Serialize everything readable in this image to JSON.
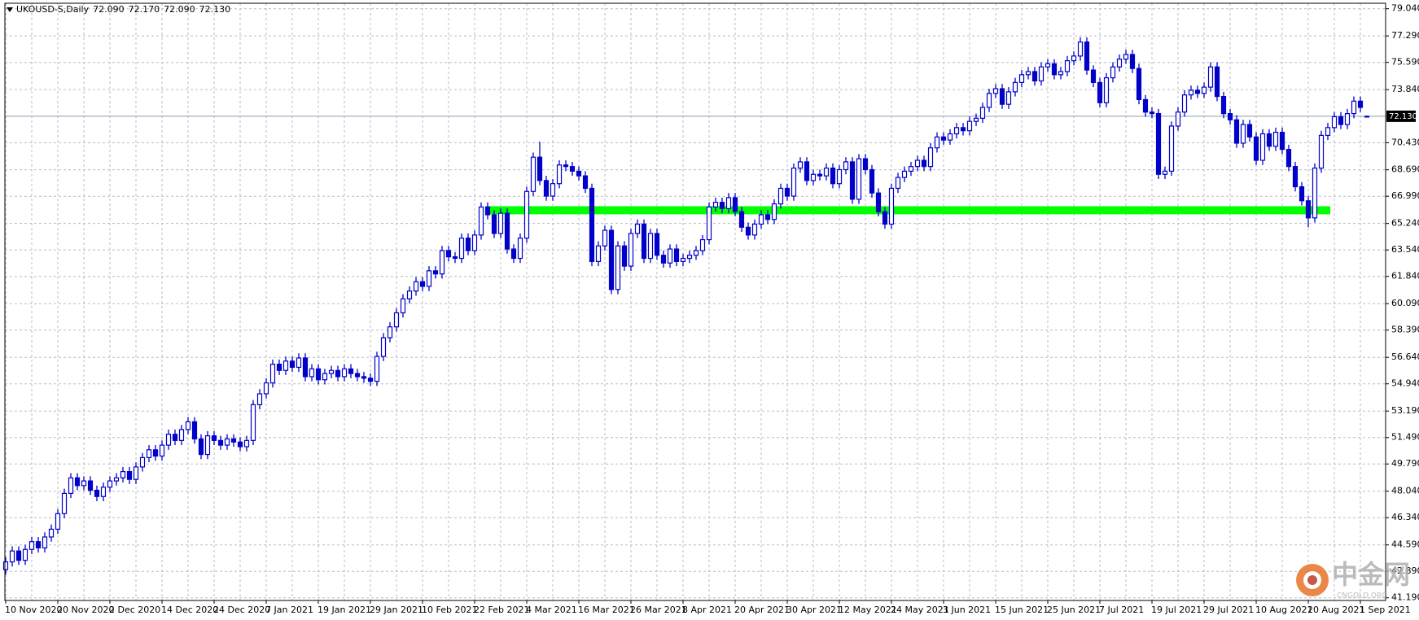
{
  "chart_data": {
    "type": "candlestick",
    "symbol": "UKOUSD-S,Daily",
    "header_values": [
      {
        "value": 72.09,
        "label": "72.090"
      },
      {
        "value": 72.17,
        "label": "72.170"
      },
      {
        "value": 72.09,
        "label": "72.090"
      },
      {
        "value": 72.13,
        "label": "72.130"
      }
    ],
    "up_color": "#0000c8",
    "down_color": "#0000c8",
    "grid": true,
    "ylim": [
      41.02,
      79.39
    ],
    "yticks": [
      {
        "value": 41.19,
        "label": "41.190"
      },
      {
        "value": 42.89,
        "label": "42.890"
      },
      {
        "value": 44.59,
        "label": "44.590"
      },
      {
        "value": 46.34,
        "label": "46.340"
      },
      {
        "value": 48.04,
        "label": "48.040"
      },
      {
        "value": 49.79,
        "label": "49.790"
      },
      {
        "value": 51.49,
        "label": "51.490"
      },
      {
        "value": 53.19,
        "label": "53.190"
      },
      {
        "value": 54.94,
        "label": "54.940"
      },
      {
        "value": 56.64,
        "label": "56.640"
      },
      {
        "value": 58.39,
        "label": "58.390"
      },
      {
        "value": 60.09,
        "label": "60.090"
      },
      {
        "value": 61.84,
        "label": "61.840"
      },
      {
        "value": 63.54,
        "label": "63.540"
      },
      {
        "value": 65.24,
        "label": "65.240"
      },
      {
        "value": 66.99,
        "label": "66.990"
      },
      {
        "value": 68.69,
        "label": "68.690"
      },
      {
        "value": 70.43,
        "label": "70.430"
      },
      {
        "value": 73.84,
        "label": "73.840"
      },
      {
        "value": 75.59,
        "label": "75.590"
      },
      {
        "value": 77.29,
        "label": "77.290"
      },
      {
        "value": 79.04,
        "label": "79.040"
      }
    ],
    "current_price": {
      "value": 72.13,
      "label": "72.130",
      "color": "#8a9ab0"
    },
    "support_band": {
      "ylim": [
        65.83,
        66.35
      ],
      "x_range": [
        74,
        203
      ],
      "color": "#00ff00"
    },
    "categories": [
      "10 Nov 2020",
      null,
      null,
      null,
      null,
      null,
      null,
      null,
      "20 Nov 2020",
      null,
      null,
      null,
      null,
      null,
      null,
      null,
      "2 Dec 2020",
      null,
      null,
      null,
      null,
      null,
      null,
      null,
      "14 Dec 2020",
      null,
      null,
      null,
      null,
      null,
      null,
      null,
      "24 Dec 2020",
      null,
      null,
      null,
      null,
      null,
      null,
      null,
      "7 Jan 2021",
      null,
      null,
      null,
      null,
      null,
      null,
      null,
      "19 Jan 2021",
      null,
      null,
      null,
      null,
      null,
      null,
      null,
      "29 Jan 2021",
      null,
      null,
      null,
      null,
      null,
      null,
      null,
      "10 Feb 2021",
      null,
      null,
      null,
      null,
      null,
      null,
      null,
      "22 Feb 2021",
      null,
      null,
      null,
      null,
      null,
      null,
      null,
      "4 Mar 2021",
      null,
      null,
      null,
      null,
      null,
      null,
      null,
      "16 Mar 2021",
      null,
      null,
      null,
      null,
      null,
      null,
      null,
      "26 Mar 2021",
      null,
      null,
      null,
      null,
      null,
      null,
      null,
      "8 Apr 2021",
      null,
      null,
      null,
      null,
      null,
      null,
      null,
      "20 Apr 2021",
      null,
      null,
      null,
      null,
      null,
      null,
      null,
      "30 Apr 2021",
      null,
      null,
      null,
      null,
      null,
      null,
      null,
      "12 May 2021",
      null,
      null,
      null,
      null,
      null,
      null,
      null,
      "24 May 2021",
      null,
      null,
      null,
      null,
      null,
      null,
      null,
      "3 Jun 2021",
      null,
      null,
      null,
      null,
      null,
      null,
      null,
      "15 Jun 2021",
      null,
      null,
      null,
      null,
      null,
      null,
      null,
      "25 Jun 2021",
      null,
      null,
      null,
      null,
      null,
      null,
      null,
      "7 Jul 2021",
      null,
      null,
      null,
      null,
      null,
      null,
      null,
      "19 Jul 2021",
      null,
      null,
      null,
      null,
      null,
      null,
      null,
      "29 Jul 2021",
      null,
      null,
      null,
      null,
      null,
      null,
      null,
      "10 Aug 2021",
      null,
      null,
      null,
      null,
      null,
      null,
      null,
      "20 Aug 2021",
      null,
      null,
      null,
      null,
      null,
      null,
      null,
      "1 Sep 2021",
      null
    ],
    "open": [
      43.0,
      43.5,
      44.2,
      43.6,
      44.3,
      44.8,
      44.4,
      45.1,
      45.6,
      46.6,
      47.9,
      48.9,
      48.4,
      48.7,
      48.1,
      47.7,
      48.3,
      48.7,
      48.9,
      49.3,
      48.8,
      49.6,
      50.2,
      50.7,
      50.3,
      51.0,
      51.7,
      51.3,
      52.0,
      52.5,
      51.4,
      50.4,
      51.6,
      51.3,
      51.0,
      51.4,
      51.2,
      50.9,
      51.3,
      53.6,
      54.3,
      55.0,
      56.2,
      55.8,
      56.4,
      56.0,
      56.6,
      55.4,
      55.9,
      55.2,
      55.6,
      55.8,
      55.4,
      55.9,
      55.6,
      55.4,
      55.3,
      55.1,
      56.7,
      57.9,
      58.6,
      59.5,
      60.4,
      60.9,
      61.5,
      61.2,
      62.2,
      62.0,
      63.5,
      63.1,
      63.0,
      64.3,
      63.5,
      64.5,
      66.3,
      65.8,
      64.6,
      65.9,
      63.6,
      63.0,
      64.3,
      67.3,
      69.5,
      68.0,
      67.0,
      67.8,
      69.0,
      68.9,
      68.6,
      68.3,
      67.5,
      62.8,
      63.8,
      64.8,
      61.0,
      63.8,
      62.5,
      64.6,
      65.2,
      63.0,
      64.6,
      63.2,
      62.7,
      63.6,
      62.8,
      63.0,
      63.2,
      63.5,
      64.2,
      66.3,
      66.6,
      66.2,
      66.9,
      66.0,
      65.0,
      64.5,
      65.2,
      65.8,
      65.5,
      66.5,
      67.5,
      67.0,
      68.8,
      69.2,
      68.0,
      68.4,
      68.3,
      68.8,
      67.8,
      68.7,
      69.2,
      66.8,
      69.4,
      68.7,
      67.2,
      66.0,
      65.2,
      67.5,
      68.2,
      68.6,
      68.9,
      69.3,
      68.9,
      70.1,
      70.8,
      70.6,
      71.0,
      71.4,
      71.2,
      71.8,
      72.0,
      72.7,
      73.6,
      73.9,
      72.9,
      73.7,
      74.3,
      74.8,
      75.0,
      74.4,
      75.3,
      75.5,
      74.8,
      75.0,
      75.7,
      76.0,
      76.9,
      75.1,
      74.3,
      73.0,
      74.6,
      75.3,
      75.8,
      76.1,
      75.2,
      73.2,
      72.4,
      72.3,
      68.4,
      68.6,
      71.5,
      72.4,
      73.5,
      73.8,
      73.6,
      74.0,
      75.3,
      73.4,
      72.3,
      71.9,
      70.4,
      71.6,
      70.8,
      69.3,
      71.0,
      70.2,
      71.1,
      70.0,
      68.9,
      67.6,
      66.7,
      65.6,
      68.8,
      70.9,
      71.4,
      72.1,
      71.6,
      72.3,
      73.1,
      72.09
    ],
    "high": [
      43.8,
      44.5,
      44.5,
      44.6,
      45.1,
      45.1,
      45.4,
      45.9,
      46.9,
      48.2,
      49.2,
      49.2,
      49.0,
      49.0,
      48.4,
      48.6,
      49.0,
      49.2,
      49.6,
      49.6,
      49.9,
      50.5,
      51.0,
      51.0,
      51.3,
      52.0,
      52.0,
      52.3,
      52.8,
      52.8,
      51.7,
      51.9,
      51.9,
      51.6,
      51.7,
      51.7,
      51.5,
      51.6,
      53.9,
      54.6,
      55.3,
      56.5,
      56.5,
      56.7,
      56.7,
      56.9,
      56.9,
      56.2,
      56.2,
      55.9,
      56.1,
      56.1,
      56.2,
      56.2,
      55.9,
      55.7,
      55.6,
      57.0,
      58.2,
      58.9,
      59.8,
      60.7,
      61.2,
      61.8,
      61.8,
      62.5,
      62.5,
      63.8,
      63.8,
      63.4,
      64.6,
      64.6,
      64.8,
      66.6,
      66.6,
      66.1,
      66.2,
      66.2,
      63.9,
      64.6,
      67.6,
      69.8,
      70.5,
      68.3,
      68.1,
      69.3,
      69.3,
      69.2,
      68.9,
      68.6,
      67.8,
      64.1,
      65.1,
      65.1,
      64.1,
      64.1,
      64.9,
      65.5,
      65.5,
      64.9,
      64.9,
      63.5,
      63.9,
      63.9,
      63.3,
      63.5,
      63.8,
      64.5,
      66.6,
      66.9,
      66.9,
      67.2,
      67.2,
      66.3,
      65.3,
      65.5,
      66.1,
      66.1,
      66.8,
      67.8,
      67.8,
      69.1,
      69.5,
      69.5,
      68.7,
      68.7,
      69.1,
      69.1,
      69.0,
      69.5,
      69.5,
      69.7,
      69.7,
      69.0,
      67.5,
      66.3,
      67.8,
      68.5,
      68.9,
      69.2,
      69.6,
      69.6,
      70.4,
      71.1,
      71.1,
      71.3,
      71.7,
      71.7,
      72.1,
      72.3,
      73.0,
      73.9,
      74.2,
      74.2,
      74.0,
      74.6,
      75.1,
      75.3,
      75.3,
      75.6,
      75.8,
      75.8,
      75.3,
      76.0,
      76.3,
      77.2,
      77.2,
      75.4,
      74.6,
      74.9,
      75.6,
      76.1,
      76.4,
      76.4,
      75.5,
      73.5,
      72.7,
      72.6,
      68.9,
      71.8,
      72.7,
      73.8,
      74.1,
      74.1,
      74.3,
      75.6,
      75.6,
      73.7,
      72.6,
      72.2,
      71.9,
      71.9,
      71.1,
      71.3,
      71.3,
      71.4,
      71.4,
      70.3,
      69.2,
      67.9,
      67.0,
      69.1,
      71.2,
      71.7,
      72.4,
      72.4,
      72.6,
      73.4,
      73.4,
      72.17
    ],
    "low": [
      42.7,
      43.2,
      43.3,
      43.3,
      44.0,
      44.1,
      44.1,
      44.8,
      45.3,
      46.3,
      47.6,
      48.1,
      48.1,
      47.8,
      47.4,
      47.4,
      48.0,
      48.4,
      48.6,
      48.5,
      48.5,
      49.3,
      49.9,
      50.0,
      50.0,
      50.7,
      51.0,
      51.0,
      51.7,
      51.1,
      50.1,
      50.1,
      51.0,
      50.7,
      50.7,
      50.9,
      50.6,
      50.6,
      51.0,
      53.3,
      54.0,
      54.7,
      55.5,
      55.5,
      55.7,
      55.7,
      55.1,
      55.1,
      54.9,
      54.9,
      55.3,
      55.1,
      55.1,
      55.3,
      55.1,
      55.0,
      54.8,
      54.8,
      56.4,
      57.6,
      58.3,
      59.2,
      60.1,
      60.6,
      60.9,
      60.9,
      61.7,
      61.7,
      62.8,
      62.7,
      62.7,
      63.2,
      63.2,
      64.2,
      65.5,
      64.3,
      64.3,
      63.3,
      62.7,
      62.7,
      64.0,
      67.0,
      67.7,
      66.7,
      66.7,
      67.5,
      68.6,
      68.3,
      68.0,
      67.2,
      62.5,
      62.5,
      63.5,
      60.7,
      60.7,
      62.2,
      62.2,
      64.3,
      62.7,
      62.7,
      62.9,
      62.4,
      62.4,
      62.5,
      62.5,
      62.7,
      62.9,
      63.2,
      63.9,
      66.0,
      65.9,
      65.9,
      65.7,
      64.7,
      64.2,
      64.2,
      64.9,
      65.2,
      65.2,
      66.2,
      66.7,
      66.7,
      68.5,
      67.7,
      67.7,
      68.0,
      68.0,
      67.5,
      67.5,
      68.4,
      66.5,
      66.5,
      68.4,
      66.9,
      65.7,
      64.9,
      64.9,
      67.2,
      67.9,
      68.3,
      68.6,
      68.6,
      68.6,
      69.8,
      70.3,
      70.3,
      70.7,
      70.9,
      70.9,
      71.5,
      71.7,
      72.4,
      73.3,
      72.6,
      72.6,
      73.4,
      74.0,
      74.5,
      74.1,
      74.1,
      75.0,
      74.5,
      74.5,
      74.7,
      75.4,
      75.7,
      74.8,
      74.0,
      72.7,
      72.7,
      74.3,
      75.0,
      75.5,
      74.9,
      72.9,
      72.1,
      72.0,
      68.1,
      68.1,
      68.3,
      71.2,
      72.1,
      73.2,
      73.3,
      73.3,
      73.7,
      73.1,
      72.0,
      71.6,
      70.1,
      70.1,
      70.5,
      69.0,
      69.0,
      69.9,
      69.9,
      69.7,
      68.6,
      67.3,
      66.4,
      65.0,
      65.3,
      68.5,
      70.6,
      71.1,
      71.3,
      71.3,
      72.0,
      72.4,
      72.09
    ],
    "close": [
      43.5,
      44.2,
      43.6,
      44.3,
      44.8,
      44.4,
      45.1,
      45.6,
      46.6,
      47.9,
      48.9,
      48.4,
      48.7,
      48.1,
      47.7,
      48.3,
      48.7,
      48.9,
      49.3,
      48.8,
      49.6,
      50.2,
      50.7,
      50.3,
      51.0,
      51.7,
      51.3,
      52.0,
      52.5,
      51.4,
      50.4,
      51.6,
      51.3,
      51.0,
      51.4,
      51.2,
      50.9,
      51.3,
      53.6,
      54.3,
      55.0,
      56.2,
      55.8,
      56.4,
      56.0,
      56.6,
      55.4,
      55.9,
      55.2,
      55.6,
      55.8,
      55.4,
      55.9,
      55.6,
      55.4,
      55.3,
      55.1,
      56.7,
      57.9,
      58.6,
      59.5,
      60.4,
      60.9,
      61.5,
      61.2,
      62.2,
      62.0,
      63.5,
      63.1,
      63.0,
      64.3,
      63.5,
      64.5,
      66.3,
      65.8,
      64.6,
      65.9,
      63.6,
      63.0,
      64.3,
      67.3,
      69.5,
      68.0,
      67.0,
      67.8,
      69.0,
      68.9,
      68.6,
      68.3,
      67.5,
      62.8,
      63.8,
      64.8,
      61.0,
      63.8,
      62.5,
      64.6,
      65.2,
      63.0,
      64.6,
      63.2,
      62.7,
      63.6,
      62.8,
      63.0,
      63.2,
      63.5,
      64.2,
      66.3,
      66.6,
      66.2,
      66.9,
      66.0,
      65.0,
      64.5,
      65.2,
      65.8,
      65.5,
      66.5,
      67.5,
      67.0,
      68.8,
      69.2,
      68.0,
      68.4,
      68.3,
      68.8,
      67.8,
      68.7,
      69.2,
      66.8,
      69.4,
      68.7,
      67.2,
      66.0,
      65.2,
      67.5,
      68.2,
      68.6,
      68.9,
      69.3,
      68.9,
      70.1,
      70.8,
      70.6,
      71.0,
      71.4,
      71.2,
      71.8,
      72.0,
      72.7,
      73.6,
      73.9,
      72.9,
      73.7,
      74.3,
      74.8,
      75.0,
      74.4,
      75.3,
      75.5,
      74.8,
      75.0,
      75.7,
      76.0,
      76.9,
      75.1,
      74.3,
      73.0,
      74.6,
      75.3,
      75.8,
      76.1,
      75.2,
      73.2,
      72.4,
      72.3,
      68.4,
      68.6,
      71.5,
      72.4,
      73.5,
      73.8,
      73.6,
      74.0,
      75.3,
      73.4,
      72.3,
      71.9,
      70.4,
      71.6,
      70.8,
      69.3,
      71.0,
      70.2,
      71.1,
      70.0,
      68.9,
      67.6,
      66.7,
      65.6,
      68.8,
      70.9,
      71.4,
      72.1,
      71.6,
      72.3,
      73.1,
      72.7,
      72.13
    ],
    "watermark": "中金网",
    "watermark_sub": "CNGOLD.ORG"
  }
}
